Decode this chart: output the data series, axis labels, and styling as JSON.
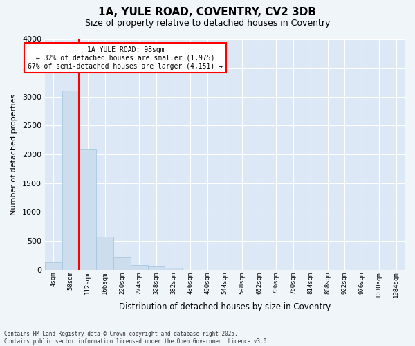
{
  "title": "1A, YULE ROAD, COVENTRY, CV2 3DB",
  "subtitle": "Size of property relative to detached houses in Coventry",
  "xlabel": "Distribution of detached houses by size in Coventry",
  "ylabel": "Number of detached properties",
  "bar_color": "#ccdded",
  "bar_edge_color": "#a8c8e0",
  "background_color": "#dce8f5",
  "grid_color": "#ffffff",
  "fig_bg_color": "#f0f5fa",
  "bin_labels": [
    "4sqm",
    "58sqm",
    "112sqm",
    "166sqm",
    "220sqm",
    "274sqm",
    "328sqm",
    "382sqm",
    "436sqm",
    "490sqm",
    "544sqm",
    "598sqm",
    "652sqm",
    "706sqm",
    "760sqm",
    "814sqm",
    "868sqm",
    "922sqm",
    "976sqm",
    "1030sqm",
    "1084sqm"
  ],
  "bar_heights": [
    130,
    3100,
    2080,
    570,
    210,
    80,
    50,
    35,
    0,
    0,
    0,
    0,
    0,
    0,
    0,
    0,
    0,
    0,
    0,
    0,
    0
  ],
  "ylim": [
    0,
    4000
  ],
  "yticks": [
    0,
    500,
    1000,
    1500,
    2000,
    2500,
    3000,
    3500,
    4000
  ],
  "property_name": "1A YULE ROAD: 98sqm",
  "annotation_line1": "← 32% of detached houses are smaller (1,975)",
  "annotation_line2": "67% of semi-detached houses are larger (4,151) →",
  "vline_position": 1.5,
  "footer_line1": "Contains HM Land Registry data © Crown copyright and database right 2025.",
  "footer_line2": "Contains public sector information licensed under the Open Government Licence v3.0."
}
